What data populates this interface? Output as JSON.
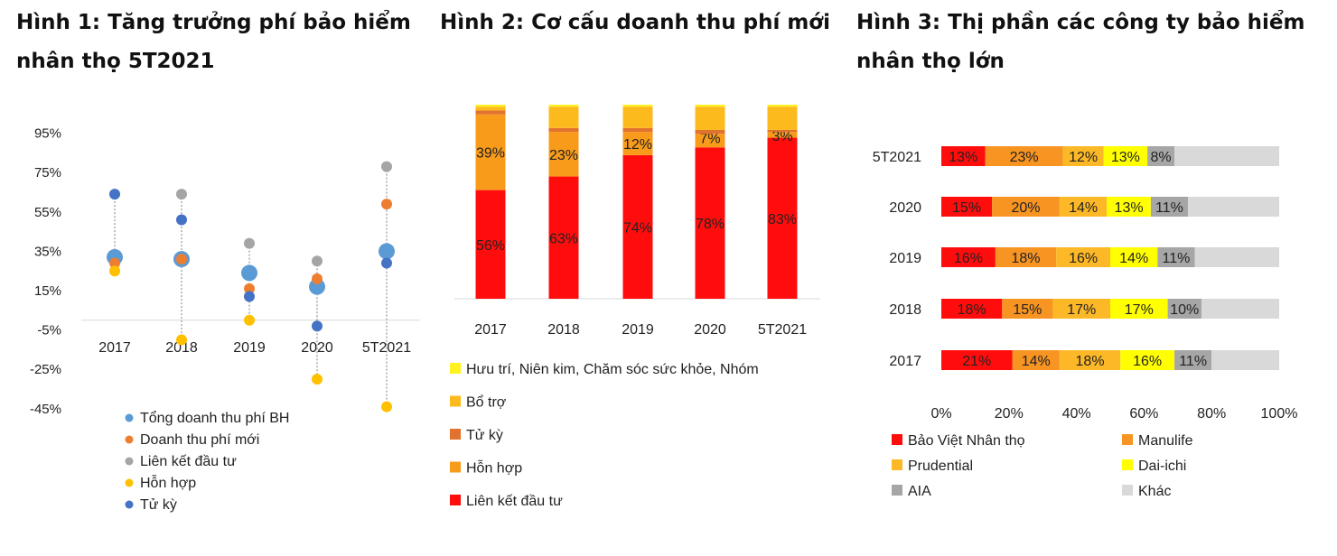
{
  "titles": {
    "fig1": "Hình 1: Tăng trưởng phí bảo hiểm nhân thọ 5T2021",
    "fig2": "Hình 2: Cơ cấu doanh thu phí mới",
    "fig3": "Hình 3: Thị phần các công ty bảo hiểm nhân thọ lớn"
  },
  "chart_data": [
    {
      "type": "scatter",
      "title": "Hình 1: Tăng trưởng phí bảo hiểm nhân thọ 5T2021",
      "categories": [
        "2017",
        "2018",
        "2019",
        "2020",
        "5T2021"
      ],
      "y_ticks": [
        "95%",
        "75%",
        "55%",
        "35%",
        "15%",
        "-5%",
        "-25%",
        "-45%"
      ],
      "ylim": [
        -45,
        95
      ],
      "grid": false,
      "legend": "bottom",
      "series": [
        {
          "name": "Tổng doanh thu phí BH",
          "color": "#5B9BD5",
          "values": [
            32,
            31,
            24,
            17,
            35
          ]
        },
        {
          "name": "Doanh thu phí mới",
          "color": "#ED7D31",
          "values": [
            29,
            31,
            16,
            21,
            59
          ]
        },
        {
          "name": "Liên kết đầu tư",
          "color": "#A5A5A5",
          "values": [
            null,
            64,
            39,
            30,
            78
          ]
        },
        {
          "name": "Hỗn hợp",
          "color": "#FFC000",
          "values": [
            25,
            -10,
            0,
            -30,
            -44
          ]
        },
        {
          "name": "Tử kỳ",
          "color": "#4472C4",
          "values": [
            64,
            51,
            12,
            -3,
            29
          ]
        }
      ]
    },
    {
      "type": "bar",
      "stacked": true,
      "title": "Hình 2: Cơ cấu doanh thu phí mới",
      "categories": [
        "2017",
        "2018",
        "2019",
        "2020",
        "5T2021"
      ],
      "ylim": [
        0,
        100
      ],
      "legend": "bottom",
      "series": [
        {
          "name": "Liên kết đầu tư",
          "color": "#FF0D0D",
          "values": [
            56,
            63,
            74,
            78,
            83
          ],
          "labels": [
            "56%",
            "63%",
            "74%",
            "78%",
            "83%"
          ]
        },
        {
          "name": "Hỗn hợp",
          "color": "#F89B1B",
          "values": [
            39,
            23,
            12,
            7,
            3
          ],
          "labels": [
            "39%",
            "23%",
            "12%",
            "7%",
            "3%"
          ]
        },
        {
          "name": "Tử kỳ",
          "color": "#E2732E",
          "values": [
            2,
            2,
            2,
            2,
            1
          ]
        },
        {
          "name": "Bổ trợ",
          "color": "#FDBA1D",
          "values": [
            2,
            11,
            11,
            12,
            12
          ]
        },
        {
          "name": "Hưu trí, Niên kim, Chăm sóc sức khỏe, Nhóm",
          "color": "#FFF21E",
          "values": [
            1,
            1,
            1,
            1,
            1
          ]
        }
      ],
      "legend_order": [
        "Hưu trí, Niên kim, Chăm sóc sức khỏe, Nhóm",
        "Bổ trợ",
        "Tử kỳ",
        "Hỗn hợp",
        "Liên kết đầu tư"
      ]
    },
    {
      "type": "bar",
      "orientation": "horizontal",
      "stacked": true,
      "title": "Hình 3: Thị phần các công ty bảo hiểm nhân thọ lớn",
      "categories": [
        "5T2021",
        "2020",
        "2019",
        "2018",
        "2017"
      ],
      "x_ticks": [
        "0%",
        "20%",
        "40%",
        "60%",
        "80%",
        "100%"
      ],
      "xlim": [
        0,
        100
      ],
      "legend": "bottom",
      "series": [
        {
          "name": "Bảo Việt Nhân thọ",
          "color": "#FF0D0D",
          "values": [
            13,
            15,
            16,
            18,
            21
          ]
        },
        {
          "name": "Manulife",
          "color": "#F79422",
          "values": [
            23,
            20,
            18,
            15,
            14
          ]
        },
        {
          "name": "Prudential",
          "color": "#FDB827",
          "values": [
            12,
            14,
            16,
            17,
            18
          ]
        },
        {
          "name": "Dai-ichi",
          "color": "#FFFF00",
          "values": [
            13,
            13,
            14,
            17,
            16
          ]
        },
        {
          "name": "AIA",
          "color": "#A6A6A6",
          "values": [
            8,
            11,
            11,
            10,
            11
          ]
        },
        {
          "name": "Khác",
          "color": "#D9D9D9",
          "values": [
            31,
            27,
            25,
            23,
            20
          ],
          "labels": [
            null,
            null,
            null,
            null,
            null
          ]
        }
      ]
    }
  ]
}
